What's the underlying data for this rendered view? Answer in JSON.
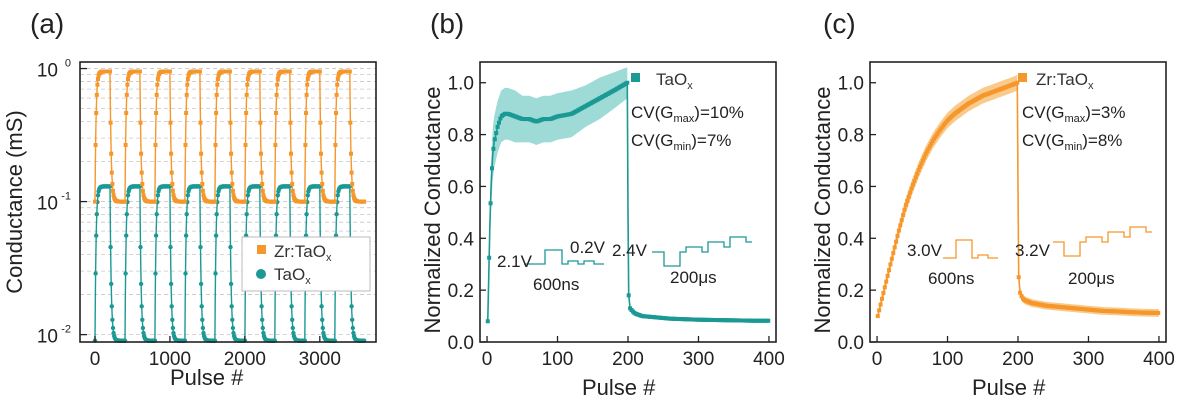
{
  "colors": {
    "zr": "#f5972a",
    "ta": "#1a9995",
    "ta_band": "#7fcfc8",
    "zr_band": "#f8b867"
  },
  "chart_data": [
    {
      "id": "a",
      "type": "line",
      "panel_label": "(a)",
      "xlabel": "Pulse #",
      "ylabel": "Conductance (mS)",
      "yscale": "log",
      "xlim": [
        -200,
        3750
      ],
      "ylim": [
        0.0088,
        1.12
      ],
      "xticks": [
        0,
        1000,
        2000,
        3000
      ],
      "xtick_labels": [
        "0",
        "1000",
        "2000",
        "3000"
      ],
      "yticks": [
        0.01,
        0.1,
        1
      ],
      "ytick_labels": [
        "10",
        "10",
        "10"
      ],
      "ytick_exponents": [
        "-2",
        "-1",
        "0"
      ],
      "grid": true,
      "legend_position": "lower-right",
      "cycle_length": 400,
      "cycles": 9,
      "series": [
        {
          "name_main": "Zr:TaO",
          "name_sub": "x",
          "color_key": "zr",
          "marker": "square",
          "g_min": 0.1,
          "g_max": 0.95,
          "set_pulses": 200
        },
        {
          "name_main": "TaO",
          "name_sub": "x",
          "color_key": "ta",
          "marker": "circle",
          "g_min": 0.009,
          "g_max": 0.13,
          "set_pulses": 200
        }
      ]
    },
    {
      "id": "b",
      "type": "line",
      "panel_label": "(b)",
      "xlabel": "Pulse #",
      "ylabel": "Normalized Conductance",
      "xlim": [
        -10,
        410
      ],
      "ylim": [
        0,
        1.08
      ],
      "xticks": [
        0,
        100,
        200,
        300,
        400
      ],
      "xtick_labels": [
        "0",
        "100",
        "200",
        "300",
        "400"
      ],
      "yticks": [
        0,
        0.2,
        0.4,
        0.6,
        0.8,
        1.0
      ],
      "ytick_labels": [
        "0.0",
        "0.2",
        "0.4",
        "0.6",
        "0.8",
        "1.0"
      ],
      "legend_position": "top-right",
      "series": [
        {
          "name_main": "TaO",
          "name_sub": "x",
          "color_key": "ta",
          "marker": "square",
          "x": [
            1,
            2,
            4,
            6,
            8,
            10,
            15,
            20,
            25,
            30,
            40,
            50,
            60,
            70,
            80,
            90,
            100,
            120,
            140,
            160,
            180,
            199,
            200,
            201,
            203,
            206,
            210,
            220,
            240,
            260,
            280,
            300,
            320,
            340,
            360,
            380,
            400
          ],
          "y": [
            0.08,
            0.2,
            0.45,
            0.62,
            0.72,
            0.77,
            0.83,
            0.87,
            0.88,
            0.88,
            0.87,
            0.86,
            0.86,
            0.85,
            0.86,
            0.86,
            0.87,
            0.88,
            0.91,
            0.94,
            0.97,
            1.0,
            0.5,
            0.18,
            0.13,
            0.12,
            0.11,
            0.1,
            0.095,
            0.09,
            0.088,
            0.086,
            0.085,
            0.084,
            0.083,
            0.082,
            0.082
          ],
          "err": [
            0.01,
            0.04,
            0.08,
            0.09,
            0.1,
            0.1,
            0.1,
            0.1,
            0.1,
            0.1,
            0.1,
            0.09,
            0.09,
            0.09,
            0.09,
            0.09,
            0.09,
            0.09,
            0.08,
            0.08,
            0.07,
            0.06,
            0.02,
            0.01,
            0.01,
            0.01,
            0.01,
            0.005,
            0.005,
            0.005,
            0.005,
            0.005,
            0.005,
            0.005,
            0.005,
            0.005,
            0.005
          ]
        }
      ],
      "annotations": {
        "cv_max_prefix": "CV(G",
        "cv_max_sub": "max",
        "cv_max_suffix": ")=10%",
        "cv_min_prefix": "CV(G",
        "cv_min_sub": "min",
        "cv_min_suffix": ")=7%",
        "pulse1_v1": "2.1V",
        "pulse1_v2": "0.2V",
        "pulse1_t": "600ns",
        "pulse2_v": "2.4V",
        "pulse2_t": "200μs"
      }
    },
    {
      "id": "c",
      "type": "line",
      "panel_label": "(c)",
      "xlabel": "Pulse #",
      "ylabel": "Normalized Conductance",
      "xlim": [
        -10,
        410
      ],
      "ylim": [
        0,
        1.08
      ],
      "xticks": [
        0,
        100,
        200,
        300,
        400
      ],
      "xtick_labels": [
        "0",
        "100",
        "200",
        "300",
        "400"
      ],
      "yticks": [
        0,
        0.2,
        0.4,
        0.6,
        0.8,
        1.0
      ],
      "ytick_labels": [
        "0.0",
        "0.2",
        "0.4",
        "0.6",
        "0.8",
        "1.0"
      ],
      "legend_position": "top-right",
      "series": [
        {
          "name_main": "Zr:TaO",
          "name_sub": "x",
          "color_key": "zr",
          "marker": "square",
          "x": [
            1,
            10,
            20,
            30,
            40,
            50,
            60,
            70,
            80,
            90,
            100,
            110,
            120,
            130,
            140,
            150,
            160,
            170,
            180,
            190,
            199,
            200,
            201,
            203,
            206,
            210,
            220,
            240,
            260,
            280,
            300,
            320,
            340,
            360,
            380,
            400
          ],
          "y": [
            0.1,
            0.2,
            0.31,
            0.42,
            0.52,
            0.6,
            0.67,
            0.73,
            0.78,
            0.82,
            0.855,
            0.88,
            0.9,
            0.92,
            0.935,
            0.95,
            0.96,
            0.97,
            0.98,
            0.99,
            1.0,
            0.6,
            0.25,
            0.19,
            0.17,
            0.16,
            0.15,
            0.14,
            0.135,
            0.13,
            0.125,
            0.12,
            0.118,
            0.115,
            0.113,
            0.112
          ],
          "err": [
            0.01,
            0.02,
            0.02,
            0.025,
            0.03,
            0.03,
            0.03,
            0.03,
            0.03,
            0.03,
            0.03,
            0.03,
            0.03,
            0.03,
            0.03,
            0.03,
            0.03,
            0.03,
            0.03,
            0.03,
            0.03,
            0.02,
            0.015,
            0.015,
            0.015,
            0.015,
            0.015,
            0.015,
            0.015,
            0.015,
            0.015,
            0.015,
            0.015,
            0.015,
            0.015,
            0.015
          ]
        }
      ],
      "annotations": {
        "cv_max_prefix": "CV(G",
        "cv_max_sub": "max",
        "cv_max_suffix": ")=3%",
        "cv_min_prefix": "CV(G",
        "cv_min_sub": "min",
        "cv_min_suffix": ")=8%",
        "pulse1_v1": "3.0V",
        "pulse1_t": "600ns",
        "pulse2_v": "3.2V",
        "pulse2_t": "200μs"
      }
    }
  ]
}
